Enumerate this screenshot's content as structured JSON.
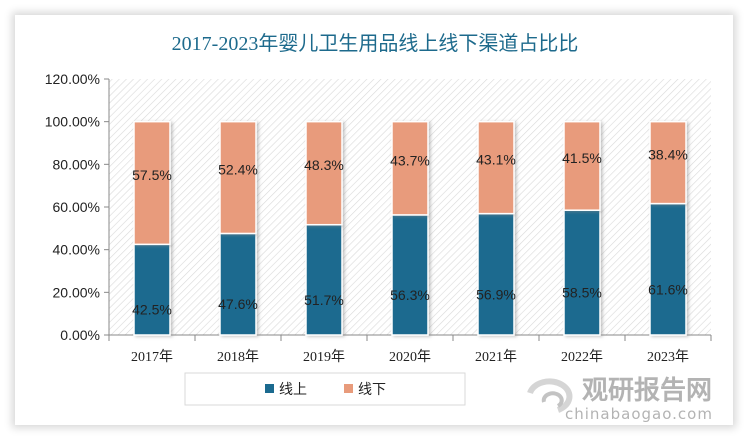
{
  "chart_data": {
    "type": "bar",
    "stacked": true,
    "title": "2017-2023年婴儿卫生用品线上线下渠道占比比",
    "categories": [
      "2017年",
      "2018年",
      "2019年",
      "2020年",
      "2021年",
      "2022年",
      "2023年"
    ],
    "series": [
      {
        "name": "线上",
        "color": "#1b6a8f",
        "values": [
          42.5,
          47.6,
          51.7,
          56.3,
          56.9,
          58.5,
          61.6
        ]
      },
      {
        "name": "线下",
        "color": "#e89b7b",
        "values": [
          57.5,
          52.4,
          48.3,
          43.7,
          43.1,
          41.5,
          38.4
        ]
      }
    ],
    "ylim": [
      0,
      120
    ],
    "yticks": [
      "0.00%",
      "20.00%",
      "40.00%",
      "60.00%",
      "80.00%",
      "100.00%",
      "120.00%"
    ],
    "legend_position": "bottom",
    "grid": false,
    "plot_background": "hatched"
  },
  "watermark": {
    "brand": "观研报告网",
    "url": "chinabaogao.com"
  }
}
